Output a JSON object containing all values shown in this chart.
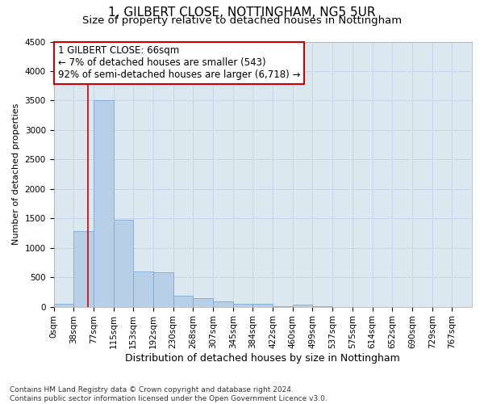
{
  "title1": "1, GILBERT CLOSE, NOTTINGHAM, NG5 5UR",
  "title2": "Size of property relative to detached houses in Nottingham",
  "xlabel": "Distribution of detached houses by size in Nottingham",
  "ylabel": "Number of detached properties",
  "footer1": "Contains HM Land Registry data © Crown copyright and database right 2024.",
  "footer2": "Contains public sector information licensed under the Open Government Licence v3.0.",
  "bar_labels": [
    "0sqm",
    "38sqm",
    "77sqm",
    "115sqm",
    "153sqm",
    "192sqm",
    "230sqm",
    "268sqm",
    "307sqm",
    "345sqm",
    "384sqm",
    "422sqm",
    "460sqm",
    "499sqm",
    "537sqm",
    "575sqm",
    "614sqm",
    "652sqm",
    "690sqm",
    "729sqm",
    "767sqm"
  ],
  "bar_values": [
    50,
    1280,
    3500,
    1470,
    600,
    590,
    185,
    140,
    90,
    55,
    45,
    10,
    30,
    5,
    0,
    0,
    0,
    0,
    0,
    0,
    0
  ],
  "bar_color": "#b8cfe8",
  "bar_edge_color": "#7fa8cf",
  "annotation_box_text": "1 GILBERT CLOSE: 66sqm\n← 7% of detached houses are smaller (543)\n92% of semi-detached houses are larger (6,718) →",
  "annotation_line_color": "#cc0000",
  "annotation_box_color": "#ffffff",
  "annotation_box_edge_color": "#cc0000",
  "red_line_x": 1.74,
  "ylim": [
    0,
    4500
  ],
  "yticks": [
    0,
    500,
    1000,
    1500,
    2000,
    2500,
    3000,
    3500,
    4000,
    4500
  ],
  "grid_color": "#c8d4e8",
  "bg_color": "#dce8f0",
  "title1_fontsize": 11,
  "title2_fontsize": 9.5,
  "xlabel_fontsize": 9,
  "ylabel_fontsize": 8,
  "tick_fontsize": 7.5,
  "annotation_fontsize": 8.5,
  "footer_fontsize": 6.5
}
